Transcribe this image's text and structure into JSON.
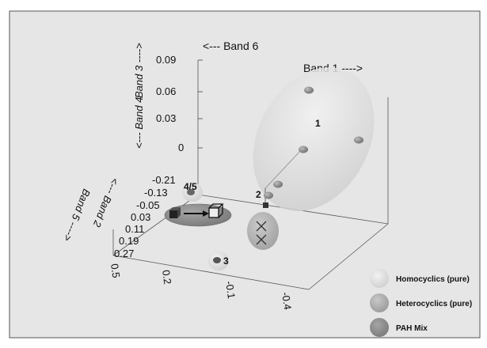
{
  "chart_data": {
    "type": "scatter",
    "title": "",
    "axes": {
      "vertical": {
        "label_top": "Band 3",
        "label_bottom": "Band 4",
        "ticks": [
          "0.09",
          "0.06",
          "0.03",
          "0"
        ]
      },
      "back": {
        "label_left": "Band 6",
        "label_right": "Band 1"
      },
      "depth": {
        "label_top": "Band 2",
        "label_bottom": "Band 5",
        "ticks": [
          "-0.21",
          "-0.13",
          "-0.05",
          "0.03",
          "0.11",
          "0.19",
          "0.27"
        ]
      },
      "floor": {
        "ticks": [
          "0.5",
          "0.2",
          "-0.1",
          "-0.4"
        ]
      }
    },
    "clusters": [
      {
        "label": "1",
        "group": "Homocyclics (pure)"
      },
      {
        "label": "2",
        "group": "Heterocyclics (pure)"
      },
      {
        "label": "3",
        "group": "Homocyclics (pure)"
      },
      {
        "label": "4/5",
        "group": "PAH Mix"
      }
    ],
    "legend": {
      "placement": "bottom-right",
      "items": [
        {
          "label": "Homocyclics (pure)",
          "color": "#d2d2d2"
        },
        {
          "label": "Heterocyclics (pure)",
          "color": "#a9a9a9"
        },
        {
          "label": "PAH Mix",
          "color": "#8a8a8a"
        }
      ]
    },
    "grid": false,
    "colors": {
      "background": "#e6e6e6",
      "homocyclics": "#d2d2d2",
      "heterocyclics": "#a9a9a9",
      "pah_mix": "#8a8a8a"
    }
  }
}
